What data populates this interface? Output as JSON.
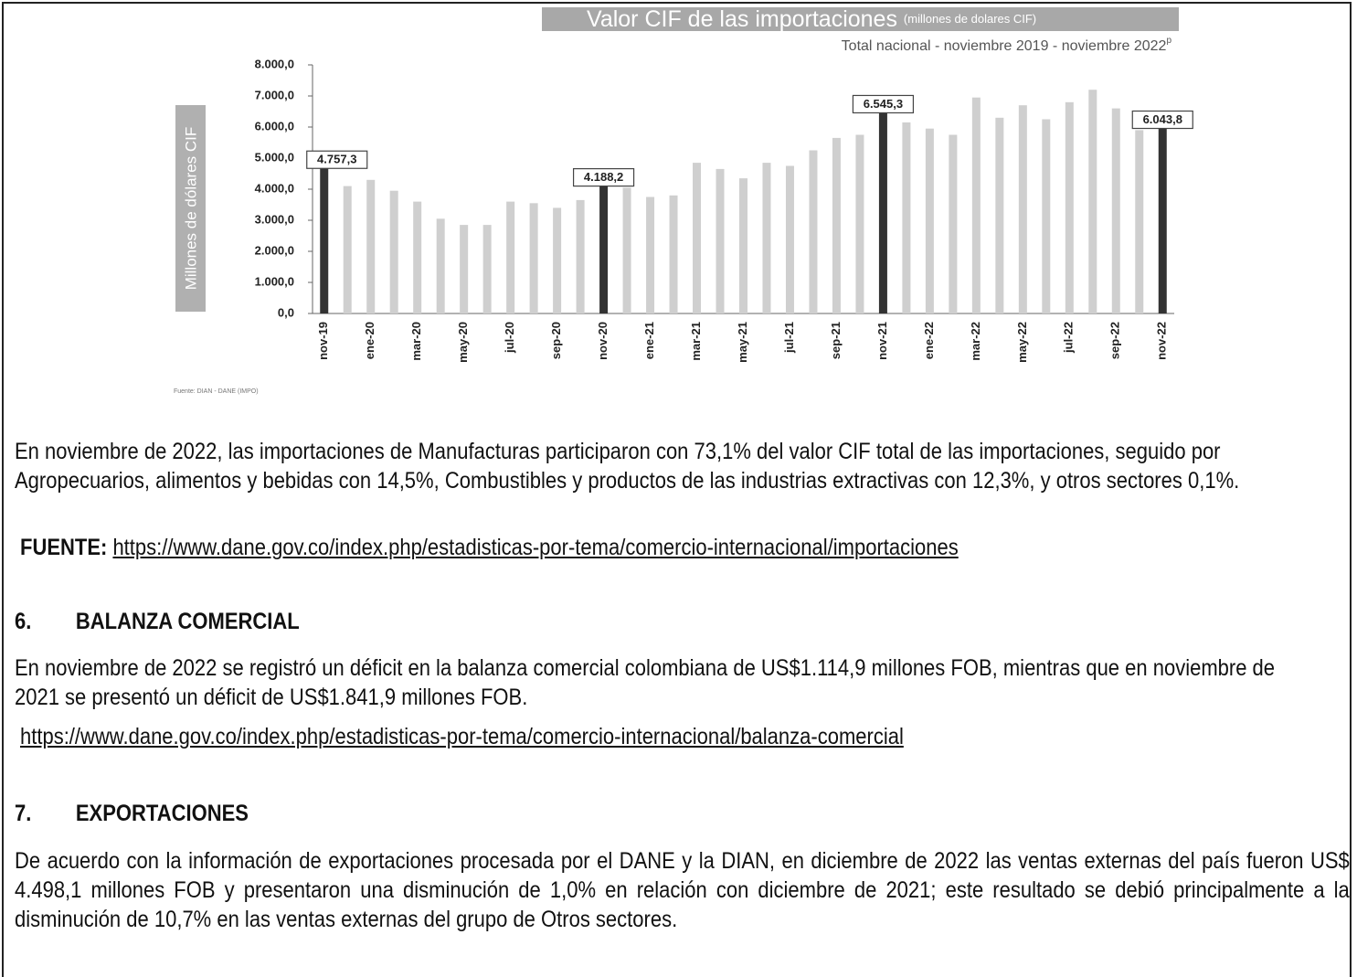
{
  "chart_data": {
    "type": "bar",
    "title": "Valor CIF de las importaciones",
    "title_note": "(millones de dolares CIF)",
    "subtitle": "Total nacional - noviembre 2019  - noviembre 2022",
    "subtitle_superscript": "p",
    "ylabel": "Millones de dólares CIF",
    "source": "Fuente: DIAN - DANE (IMPO)",
    "categories": [
      "nov-19",
      null,
      "ene-20",
      null,
      "mar-20",
      null,
      "may-20",
      null,
      "jul-20",
      null,
      "sep-20",
      null,
      "nov-20",
      null,
      "ene-21",
      null,
      "mar-21",
      null,
      "may-21",
      null,
      "jul-21",
      null,
      "sep-21",
      null,
      "nov-21",
      null,
      "ene-22",
      null,
      "mar-22",
      null,
      "may-22",
      null,
      "jul-22",
      null,
      "sep-22",
      null,
      "nov-22"
    ],
    "values": [
      4757.3,
      4100,
      4300,
      3950,
      3600,
      3050,
      2850,
      2850,
      3600,
      3550,
      3400,
      3650,
      4188.2,
      4050,
      3750,
      3800,
      4850,
      4650,
      4350,
      4850,
      4750,
      5250,
      5650,
      5750,
      6545.3,
      6150,
      5950,
      5750,
      6950,
      6300,
      6700,
      6250,
      6800,
      7200,
      6600,
      5900,
      6043.8
    ],
    "value_labels": [
      "4.757,3",
      null,
      null,
      null,
      null,
      null,
      null,
      null,
      null,
      null,
      null,
      null,
      "4.188,2",
      null,
      null,
      null,
      null,
      null,
      null,
      null,
      null,
      null,
      null,
      null,
      "6.545,3",
      null,
      null,
      null,
      null,
      null,
      null,
      null,
      null,
      null,
      null,
      null,
      "6.043,8"
    ],
    "colors": [
      "#333333",
      "#cfcfcf",
      "#cfcfcf",
      "#cfcfcf",
      "#cfcfcf",
      "#cfcfcf",
      "#cfcfcf",
      "#cfcfcf",
      "#cfcfcf",
      "#cfcfcf",
      "#cfcfcf",
      "#cfcfcf",
      "#333333",
      "#cfcfcf",
      "#cfcfcf",
      "#cfcfcf",
      "#cfcfcf",
      "#cfcfcf",
      "#cfcfcf",
      "#cfcfcf",
      "#cfcfcf",
      "#cfcfcf",
      "#cfcfcf",
      "#cfcfcf",
      "#333333",
      "#cfcfcf",
      "#cfcfcf",
      "#cfcfcf",
      "#cfcfcf",
      "#cfcfcf",
      "#cfcfcf",
      "#cfcfcf",
      "#cfcfcf",
      "#cfcfcf",
      "#cfcfcf",
      "#cfcfcf",
      "#333333"
    ],
    "ylim": [
      0,
      8000
    ],
    "yticks": [
      {
        "value": 0,
        "label": "0,0"
      },
      {
        "value": 1000,
        "label": "1.000,0"
      },
      {
        "value": 2000,
        "label": "2.000,0"
      },
      {
        "value": 3000,
        "label": "3.000,0"
      },
      {
        "value": 4000,
        "label": "4.000,0"
      },
      {
        "value": 5000,
        "label": "5.000,0"
      },
      {
        "value": 6000,
        "label": "6.000,0"
      },
      {
        "value": 7000,
        "label": "7.000,0"
      },
      {
        "value": 8000,
        "label": "8.000,0"
      }
    ],
    "grid": false
  },
  "document": {
    "paragraph": "En noviembre de 2022, las importaciones de Manufacturas participaron con 73,1% del valor CIF total de las importaciones, seguido por Agropecuarios, alimentos y bebidas con 14,5%, Combustibles y productos de las industrias extractivas con 12,3%, y otros sectores 0,1%.",
    "source_label": "FUENTE:",
    "source_link": "https://www.dane.gov.co/index.php/estadisticas-por-tema/comercio-internacional/importaciones",
    "sections": [
      {
        "number": "6.",
        "heading": "BALANZA COMERCIAL",
        "text": "En noviembre de 2022 se registró un déficit en la balanza comercial colombiana de US$1.114,9 millones FOB, mientras que en noviembre de 2021 se presentó un déficit de US$1.841,9 millones FOB.",
        "link": "https://www.dane.gov.co/index.php/estadisticas-por-tema/comercio-internacional/balanza-comercial"
      },
      {
        "number": "7.",
        "heading": "EXPORTACIONES",
        "text": "De acuerdo con la información de exportaciones procesada por el DANE y la DIAN, en diciembre de 2022 las ventas externas del país fueron US$ 4.498,1 millones FOB y presentaron una disminución de 1,0% en relación con diciembre de 2021; este resultado se debió principalmente a la disminución de 10,7% en las ventas externas del grupo de Otros sectores."
      }
    ]
  }
}
